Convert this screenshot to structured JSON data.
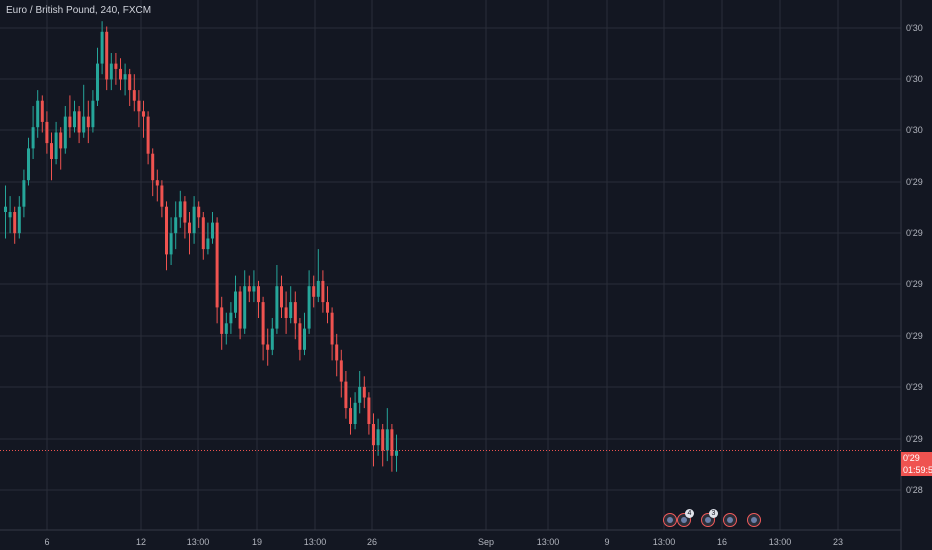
{
  "header": {
    "title": "Euro / British Pound, 240, FXCM"
  },
  "colors": {
    "background": "#131722",
    "grid": "#2a2e39",
    "up": "#26a69a",
    "down": "#ef5350",
    "axis_text": "#b2b5be"
  },
  "price_tag": {
    "value": "0'29",
    "countdown": "01:59:5"
  },
  "events": [
    {
      "name": "uk-flag-event-icon",
      "badge": ""
    },
    {
      "name": "eu-event-icon",
      "badge": "4"
    },
    {
      "name": "event-icon",
      "badge": "3"
    },
    {
      "name": "event-icon-2",
      "badge": ""
    },
    {
      "name": "event-icon-3",
      "badge": ""
    }
  ],
  "chart_data": {
    "type": "candlestick",
    "title": "Euro / British Pound, 240, FXCM",
    "y_tick_labels": [
      "0'30",
      "0'30",
      "0'30",
      "0'29",
      "0'29",
      "0'29",
      "0'29",
      "0'29",
      "0'29",
      "0'28"
    ],
    "x_tick_labels": [
      "6",
      "12",
      "13:00",
      "19",
      "13:00",
      "26",
      "Sep",
      "13:00",
      "9",
      "13:00",
      "16",
      "13:00",
      "23"
    ],
    "ylim": [
      0.0,
      10.0
    ],
    "grid": true,
    "current_price_line": 1.5,
    "candles": [
      [
        6.0,
        6.1,
        6.5,
        5.5
      ],
      [
        5.9,
        6.0,
        6.3,
        5.6
      ],
      [
        6.0,
        5.6,
        6.1,
        5.4
      ],
      [
        5.6,
        6.1,
        6.3,
        5.5
      ],
      [
        6.1,
        6.6,
        6.8,
        5.9
      ],
      [
        6.6,
        7.2,
        7.4,
        6.5
      ],
      [
        7.2,
        7.6,
        8.0,
        7.0
      ],
      [
        7.6,
        8.1,
        8.3,
        7.4
      ],
      [
        8.1,
        7.7,
        8.2,
        7.5
      ],
      [
        7.7,
        7.3,
        7.9,
        7.1
      ],
      [
        7.3,
        7.0,
        7.5,
        6.6
      ],
      [
        7.0,
        7.5,
        7.7,
        6.9
      ],
      [
        7.5,
        7.2,
        7.6,
        6.8
      ],
      [
        7.2,
        7.8,
        8.0,
        7.1
      ],
      [
        7.8,
        7.6,
        8.2,
        7.4
      ],
      [
        7.6,
        7.9,
        8.1,
        7.5
      ],
      [
        7.9,
        7.5,
        8.0,
        7.3
      ],
      [
        7.5,
        7.8,
        8.4,
        7.4
      ],
      [
        7.8,
        7.6,
        8.1,
        7.3
      ],
      [
        7.6,
        8.1,
        8.3,
        7.5
      ],
      [
        8.1,
        8.8,
        9.1,
        8.0
      ],
      [
        8.8,
        9.4,
        9.6,
        8.6
      ],
      [
        9.4,
        8.5,
        9.5,
        8.3
      ],
      [
        8.5,
        8.8,
        9.0,
        8.3
      ],
      [
        8.8,
        8.7,
        9.0,
        8.4
      ],
      [
        8.7,
        8.5,
        8.9,
        8.3
      ],
      [
        8.5,
        8.6,
        8.8,
        8.2
      ],
      [
        8.6,
        8.3,
        8.7,
        8.0
      ],
      [
        8.3,
        8.1,
        8.6,
        7.9
      ],
      [
        8.1,
        7.9,
        8.3,
        7.6
      ],
      [
        7.9,
        7.8,
        8.1,
        7.4
      ],
      [
        7.8,
        7.1,
        7.9,
        6.9
      ],
      [
        7.1,
        6.6,
        7.2,
        6.3
      ],
      [
        6.6,
        6.5,
        6.8,
        6.2
      ],
      [
        6.5,
        6.1,
        6.6,
        5.9
      ],
      [
        6.1,
        5.2,
        6.2,
        4.9
      ],
      [
        5.2,
        5.6,
        5.9,
        5.0
      ],
      [
        5.6,
        5.9,
        6.2,
        5.3
      ],
      [
        5.9,
        6.2,
        6.4,
        5.7
      ],
      [
        6.2,
        5.8,
        6.3,
        5.5
      ],
      [
        5.8,
        5.6,
        6.0,
        5.2
      ],
      [
        5.6,
        6.1,
        6.3,
        5.4
      ],
      [
        6.1,
        5.9,
        6.2,
        5.7
      ],
      [
        5.9,
        5.3,
        6.0,
        5.1
      ],
      [
        5.3,
        5.5,
        5.8,
        5.2
      ],
      [
        5.5,
        5.8,
        6.0,
        5.4
      ],
      [
        5.8,
        4.2,
        5.9,
        3.9
      ],
      [
        4.2,
        3.7,
        4.4,
        3.4
      ],
      [
        3.7,
        3.9,
        4.1,
        3.5
      ],
      [
        3.9,
        4.1,
        4.3,
        3.7
      ],
      [
        4.1,
        4.5,
        4.8,
        4.0
      ],
      [
        4.5,
        3.8,
        4.6,
        3.6
      ],
      [
        3.8,
        4.6,
        4.9,
        3.7
      ],
      [
        4.6,
        4.5,
        4.8,
        4.3
      ],
      [
        4.5,
        4.6,
        4.9,
        4.3
      ],
      [
        4.6,
        4.3,
        4.7,
        4.0
      ],
      [
        4.3,
        3.5,
        4.4,
        3.2
      ],
      [
        3.5,
        3.4,
        3.8,
        3.1
      ],
      [
        3.4,
        3.8,
        4.0,
        3.3
      ],
      [
        3.8,
        4.6,
        5.0,
        3.7
      ],
      [
        4.6,
        4.2,
        4.8,
        4.0
      ],
      [
        4.2,
        4.0,
        4.5,
        3.7
      ],
      [
        4.0,
        4.3,
        4.6,
        3.9
      ],
      [
        4.3,
        3.9,
        4.5,
        3.6
      ],
      [
        3.9,
        3.4,
        4.0,
        3.2
      ],
      [
        3.4,
        3.8,
        4.1,
        3.3
      ],
      [
        3.8,
        4.6,
        4.9,
        3.7
      ],
      [
        4.6,
        4.4,
        4.8,
        4.2
      ],
      [
        4.4,
        4.7,
        5.3,
        4.3
      ],
      [
        4.7,
        4.3,
        4.9,
        4.1
      ],
      [
        4.3,
        4.1,
        4.6,
        3.9
      ],
      [
        4.1,
        3.5,
        4.2,
        3.2
      ],
      [
        3.5,
        3.2,
        3.7,
        2.9
      ],
      [
        3.2,
        2.8,
        3.4,
        2.5
      ],
      [
        2.8,
        2.3,
        3.0,
        2.1
      ],
      [
        2.3,
        2.0,
        2.5,
        1.8
      ],
      [
        2.0,
        2.4,
        2.6,
        1.9
      ],
      [
        2.4,
        2.7,
        3.0,
        2.2
      ],
      [
        2.7,
        2.5,
        2.9,
        2.3
      ],
      [
        2.5,
        2.0,
        2.6,
        1.8
      ],
      [
        2.0,
        1.6,
        2.2,
        1.2
      ],
      [
        1.6,
        1.9,
        2.1,
        1.4
      ],
      [
        1.9,
        1.5,
        2.0,
        1.2
      ],
      [
        1.5,
        1.9,
        2.3,
        1.3
      ],
      [
        1.9,
        1.4,
        2.0,
        1.1
      ],
      [
        1.4,
        1.5,
        1.8,
        1.1
      ]
    ]
  }
}
